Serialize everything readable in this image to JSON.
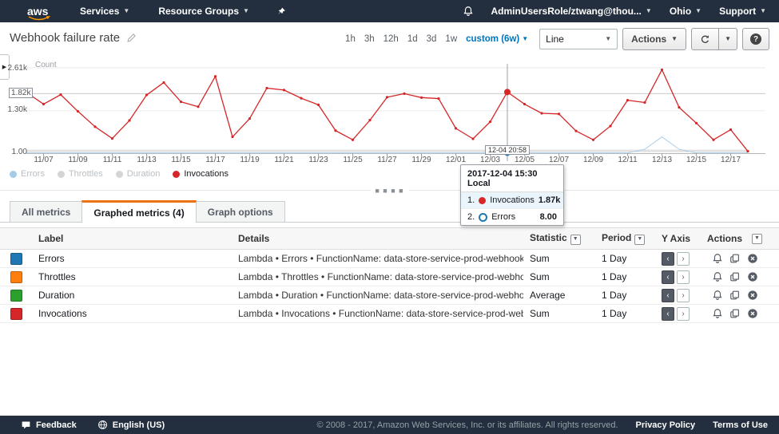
{
  "nav": {
    "logo_text": "aws",
    "services_label": "Services",
    "resource_groups_label": "Resource Groups",
    "user_label": "AdminUsersRole/ztwang@thou...",
    "region_label": "Ohio",
    "support_label": "Support"
  },
  "toolbar": {
    "title": "Webhook failure rate",
    "time_ranges": [
      "1h",
      "3h",
      "12h",
      "1d",
      "3d",
      "1w"
    ],
    "custom_range": "custom (6w)",
    "chart_type": "Line",
    "actions_label": "Actions"
  },
  "chart_data": {
    "type": "line",
    "title": "Webhook failure rate",
    "ylabel": "Count",
    "ylim": [
      1,
      2610
    ],
    "y_ticks": [
      {
        "label": "2.61k",
        "value": 2610
      },
      {
        "label": "1.82k",
        "value": 1820,
        "boxed": true
      },
      {
        "label": "1.30k",
        "value": 1300
      },
      {
        "label": "1.00",
        "value": 1
      }
    ],
    "x_tick_labels": [
      "11/07",
      "11/09",
      "11/11",
      "11/13",
      "11/15",
      "11/17",
      "11/19",
      "11/21",
      "11/23",
      "11/25",
      "11/27",
      "11/29",
      "12/01",
      "12/03",
      "12/05",
      "12/07",
      "12/09",
      "12/11",
      "12/13",
      "12/15",
      "12/17"
    ],
    "dates": [
      "11/06",
      "11/07",
      "11/08",
      "11/09",
      "11/10",
      "11/11",
      "11/12",
      "11/13",
      "11/14",
      "11/15",
      "11/16",
      "11/17",
      "11/18",
      "11/19",
      "11/20",
      "11/21",
      "11/22",
      "11/23",
      "11/24",
      "11/25",
      "11/26",
      "11/27",
      "11/28",
      "11/29",
      "11/30",
      "12/01",
      "12/02",
      "12/03",
      "12/04",
      "12/05",
      "12/06",
      "12/07",
      "12/08",
      "12/09",
      "12/10",
      "12/11",
      "12/12",
      "12/13",
      "12/14",
      "12/15",
      "12/16",
      "12/17",
      "12/18"
    ],
    "series": [
      {
        "name": "Duration",
        "color": "#e0e0e0",
        "width": 1.5,
        "markers": false,
        "values": [
          90,
          90,
          90,
          90,
          90,
          90,
          90,
          90,
          90,
          90,
          90,
          90,
          90,
          90,
          90,
          90,
          90,
          90,
          90,
          90,
          90,
          90,
          90,
          90,
          90,
          90,
          90,
          90,
          90,
          90,
          90,
          90,
          90,
          90,
          90,
          90,
          90,
          90,
          90,
          90,
          90,
          90,
          90
        ]
      },
      {
        "name": "Throttles",
        "color": "#d2d2d2",
        "width": 1,
        "markers": false,
        "values": [
          50,
          50,
          50,
          50,
          50,
          50,
          50,
          50,
          50,
          50,
          50,
          50,
          50,
          50,
          50,
          50,
          50,
          50,
          50,
          50,
          50,
          50,
          50,
          50,
          50,
          50,
          50,
          50,
          50,
          50,
          50,
          50,
          50,
          50,
          50,
          50,
          50,
          50,
          50,
          50,
          50,
          50,
          50
        ]
      },
      {
        "name": "Errors",
        "color": "#abcfe9",
        "width": 1,
        "markers": false,
        "values": [
          8,
          8,
          8,
          8,
          8,
          8,
          8,
          8,
          8,
          8,
          8,
          8,
          8,
          8,
          8,
          8,
          8,
          8,
          8,
          8,
          8,
          8,
          8,
          8,
          8,
          8,
          8,
          8,
          8,
          8,
          8,
          8,
          8,
          8,
          8,
          8,
          120,
          500,
          120,
          8,
          8,
          8,
          8
        ]
      },
      {
        "name": "Invocations",
        "color": "#d62728",
        "width": 1.3,
        "markers": true,
        "values": [
          1860,
          1500,
          1790,
          1280,
          810,
          450,
          1000,
          1780,
          2160,
          1570,
          1420,
          2350,
          500,
          1060,
          1990,
          1930,
          1680,
          1480,
          690,
          410,
          1010,
          1710,
          1820,
          1700,
          1670,
          760,
          440,
          960,
          1870,
          1500,
          1220,
          1200,
          680,
          410,
          830,
          1620,
          1550,
          2550,
          1400,
          920,
          410,
          720,
          60
        ]
      }
    ],
    "hover": {
      "index": 28,
      "crosshair_label": "12-04 20:58",
      "value_line": 1820,
      "marker_value": 1870,
      "errors_marker_value": 8
    },
    "legend_position": "bottom",
    "grid": true
  },
  "legend": {
    "items": [
      {
        "label": "Errors",
        "dot_color": "#a6cbe6",
        "label_color": "#b9bfc4"
      },
      {
        "label": "Throttles",
        "dot_color": "#d5d5d5",
        "label_color": "#b9bfc4"
      },
      {
        "label": "Duration",
        "dot_color": "#d5d5d5",
        "label_color": "#b9bfc4"
      },
      {
        "label": "Invocations",
        "dot_color": "#d62728",
        "label_color": "#16191f"
      }
    ]
  },
  "tooltip": {
    "title": "2017-12-04 15:30 Local",
    "rows": [
      {
        "rank": "1.",
        "name": "Invocations",
        "value": "1.87k",
        "dot_color": "#d62728"
      },
      {
        "rank": "2.",
        "name": "Errors",
        "value": "8.00",
        "dot_color": "#1f77b4"
      }
    ]
  },
  "tabs": {
    "items": [
      {
        "label": "All metrics"
      },
      {
        "label": "Graphed metrics (4)"
      },
      {
        "label": "Graph options"
      }
    ],
    "active_index": 1
  },
  "table": {
    "headers": {
      "label": "Label",
      "details": "Details",
      "statistic": "Statistic",
      "period": "Period",
      "y_axis": "Y Axis",
      "actions": "Actions"
    },
    "rows": [
      {
        "color": "#1f77b4",
        "label": "Errors",
        "details": "Lambda • Errors • FunctionName: data-store-service-prod-webhook",
        "statistic": "Sum",
        "period": "1 Day"
      },
      {
        "color": "#ff7f0e",
        "label": "Throttles",
        "details": "Lambda • Throttles • FunctionName: data-store-service-prod-webhook",
        "statistic": "Sum",
        "period": "1 Day"
      },
      {
        "color": "#2ca02c",
        "label": "Duration",
        "details": "Lambda • Duration • FunctionName: data-store-service-prod-webhook",
        "statistic": "Average",
        "period": "1 Day"
      },
      {
        "color": "#d62728",
        "label": "Invocations",
        "details": "Lambda • Invocations • FunctionName: data-store-service-prod-webhook",
        "statistic": "Sum",
        "period": "1 Day"
      }
    ]
  },
  "footer": {
    "feedback_label": "Feedback",
    "language_label": "English (US)",
    "copyright": "© 2008 - 2017, Amazon Web Services, Inc. or its affiliates. All rights reserved.",
    "privacy_label": "Privacy Policy",
    "terms_label": "Terms of Use"
  },
  "icons": {
    "bell": "bell-icon",
    "pin": "pin-icon",
    "refresh": "refresh-icon",
    "help": "help-icon",
    "pencil": "edit-pencil-icon",
    "copy": "copy-icon",
    "remove": "remove-circle-icon",
    "feedback": "speech-bubble-icon",
    "globe": "globe-icon"
  },
  "colors": {
    "nav_bg": "#232f3e",
    "accent_orange": "#ec7211",
    "link_blue": "#0073bb",
    "invocations_red": "#d62728",
    "errors_blue": "#1f77b4",
    "throttles_orange": "#ff7f0e",
    "duration_green": "#2ca02c"
  }
}
